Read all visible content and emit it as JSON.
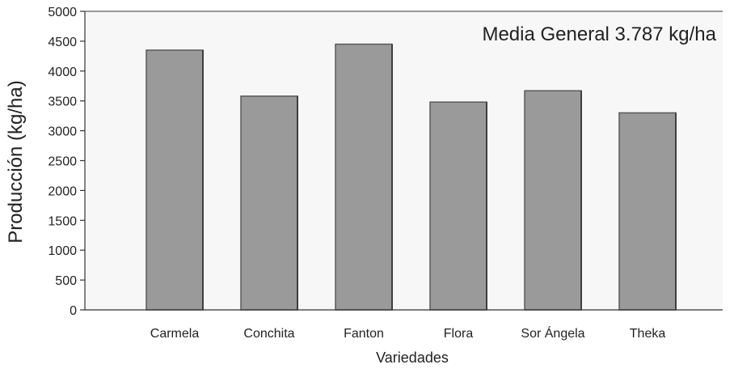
{
  "chart_data": {
    "type": "bar",
    "categories": [
      "Carmela",
      "Conchita",
      "Fanton",
      "Flora",
      "Sor Ángela",
      "Theka"
    ],
    "values": [
      4350,
      3580,
      4450,
      3480,
      3670,
      3300
    ],
    "title": "",
    "xlabel": "Variedades",
    "ylabel": "Producción (kg/ha)",
    "ylim": [
      0,
      5000
    ],
    "yticks": [
      0,
      500,
      1000,
      1500,
      2000,
      2500,
      3000,
      3500,
      4000,
      4500,
      5000
    ],
    "annotation": "Media General 3.787 kg/ha",
    "grid": false,
    "legend": "none",
    "bar_color": "#9a9a9a",
    "bar_edge_color": "#5a5a5a",
    "axis_color": "#333333"
  }
}
